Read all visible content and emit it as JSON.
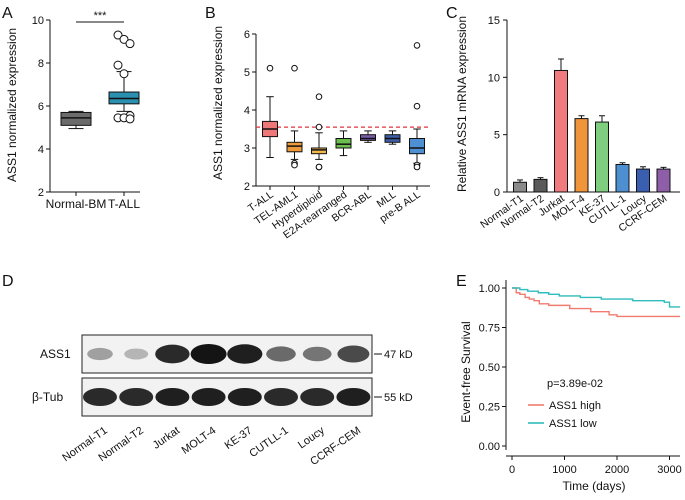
{
  "figure": {
    "panels": {
      "A": "A",
      "B": "B",
      "C": "C",
      "D": "D",
      "E": "E"
    }
  },
  "colors": {
    "normal_bm": "#6b6b6b",
    "tall": "#2b8fb0",
    "b_tall": "#ee7777",
    "b_tel": "#ee9a3a",
    "b_hyper": "#f2b84c",
    "b_e2a": "#6bbd4e",
    "b_bcr": "#7b5ea8",
    "b_mll": "#3e5fa8",
    "b_preb": "#4d8fd1",
    "c_gray": "#8a8a8a",
    "c_dark": "#5a5a5a",
    "c_jurkat": "#f07b7f",
    "c_molt": "#f0953a",
    "c_ke": "#7fcd7f",
    "c_cutll": "#4d8fd1",
    "c_loucy": "#3a5fb0",
    "c_ccrf": "#8e5fa8",
    "ass1_high": "#f07b6f",
    "ass1_low": "#2fbcbc",
    "refline": "#e0353b"
  },
  "chart_data": [
    {
      "panel": "A",
      "type": "box",
      "ylabel": "ASS1 normalized expression",
      "ylim": [
        2,
        10
      ],
      "yticks": [
        "2",
        "4",
        "6",
        "8",
        "10"
      ],
      "categories": [
        "Normal-BM",
        "T-ALL"
      ],
      "significance": "***",
      "boxes": [
        {
          "name": "Normal-BM",
          "min": 4.95,
          "q1": 5.1,
          "median": 5.45,
          "q3": 5.7,
          "max": 5.75,
          "outliers": []
        },
        {
          "name": "T-ALL",
          "min": 5.75,
          "q1": 6.1,
          "median": 6.35,
          "q3": 6.65,
          "max": 7.6,
          "outliers": [
            9.3,
            9.1,
            8.9,
            7.9,
            7.5,
            5.55,
            5.45,
            5.45,
            5.4
          ]
        }
      ]
    },
    {
      "panel": "B",
      "type": "box",
      "ylabel": "ASS1 normalized expression",
      "ylim": [
        2,
        6
      ],
      "yticks": [
        "2",
        "3",
        "4",
        "5",
        "6"
      ],
      "reference_line": 3.55,
      "categories": [
        "T-ALL",
        "TEL-AML1",
        "Hyperdiploid",
        "E2A-rearranged",
        "BCR-ABL",
        "MLL",
        "pre-B ALL"
      ],
      "boxes": [
        {
          "name": "T-ALL",
          "min": 2.75,
          "q1": 3.3,
          "median": 3.5,
          "q3": 3.7,
          "max": 4.35,
          "outliers": [
            5.1
          ]
        },
        {
          "name": "TEL-AML1",
          "min": 2.7,
          "q1": 2.9,
          "median": 3.05,
          "q3": 3.15,
          "max": 3.45,
          "outliers": [
            5.1,
            2.6,
            2.55
          ]
        },
        {
          "name": "Hyperdiploid",
          "min": 2.7,
          "q1": 2.85,
          "median": 2.95,
          "q3": 3.0,
          "max": 3.4,
          "outliers": [
            4.35,
            3.55,
            2.5,
            2.5
          ]
        },
        {
          "name": "E2A-rearranged",
          "min": 2.8,
          "q1": 3.0,
          "median": 3.1,
          "q3": 3.25,
          "max": 3.45,
          "outliers": []
        },
        {
          "name": "BCR-ABL",
          "min": 3.15,
          "q1": 3.2,
          "median": 3.25,
          "q3": 3.35,
          "max": 3.45,
          "outliers": []
        },
        {
          "name": "MLL",
          "min": 3.1,
          "q1": 3.15,
          "median": 3.25,
          "q3": 3.35,
          "max": 3.45,
          "outliers": []
        },
        {
          "name": "pre-B ALL",
          "min": 2.6,
          "q1": 2.85,
          "median": 3.0,
          "q3": 3.25,
          "max": 3.5,
          "outliers": [
            5.7,
            4.1,
            2.55,
            2.5
          ]
        }
      ]
    },
    {
      "panel": "C",
      "type": "bar",
      "ylabel": "Relative ASS1 mRNA expression",
      "ylim": [
        0,
        15
      ],
      "yticks": [
        "0",
        "5",
        "10",
        "15"
      ],
      "categories": [
        "Normal-T1",
        "Normal-T2",
        "Jurkat",
        "MOLT-4",
        "KE-37",
        "CUTLL-1",
        "Loucy",
        "CCRF-CEM"
      ],
      "values": [
        0.85,
        1.1,
        10.6,
        6.4,
        6.1,
        2.4,
        2.0,
        2.0
      ],
      "errors": [
        0.2,
        0.15,
        1.0,
        0.25,
        0.55,
        0.15,
        0.2,
        0.15
      ]
    },
    {
      "panel": "E",
      "type": "line",
      "ylabel": "Event-free Survival",
      "xlabel": "Time (days)",
      "xlim": [
        0,
        3200
      ],
      "ylim": [
        0,
        1
      ],
      "xticks": [
        "0",
        "1000",
        "2000",
        "3000"
      ],
      "yticks": [
        "0.00",
        "0.25",
        "0.50",
        "0.75",
        "1.00"
      ],
      "pvalue": "p=3.89e-02",
      "series": [
        {
          "name": "ASS1 high",
          "x": [
            0,
            80,
            150,
            250,
            330,
            420,
            520,
            700,
            900,
            1100,
            1300,
            1500,
            1700,
            1850,
            2000,
            2200,
            2400,
            2600,
            2800,
            3000,
            3200
          ],
          "y": [
            1.0,
            0.97,
            0.96,
            0.94,
            0.93,
            0.92,
            0.9,
            0.89,
            0.89,
            0.87,
            0.87,
            0.85,
            0.85,
            0.83,
            0.82,
            0.82,
            0.82,
            0.82,
            0.82,
            0.82,
            0.82
          ]
        },
        {
          "name": "ASS1 low",
          "x": [
            0,
            150,
            300,
            500,
            700,
            900,
            1100,
            1300,
            1500,
            1700,
            1900,
            2100,
            2300,
            2500,
            2700,
            2900,
            3000,
            3200
          ],
          "y": [
            1.0,
            0.99,
            0.98,
            0.97,
            0.96,
            0.95,
            0.95,
            0.94,
            0.94,
            0.93,
            0.93,
            0.93,
            0.92,
            0.92,
            0.92,
            0.91,
            0.88,
            0.88
          ]
        }
      ]
    }
  ],
  "western": {
    "rows": [
      {
        "label": "ASS1",
        "size": "47 kD"
      },
      {
        "label": "β-Tub",
        "size": "55 kD"
      }
    ],
    "lanes": [
      "Normal-T1",
      "Normal-T2",
      "Jurkat",
      "MOLT-4",
      "KE-37",
      "CUTLL-1",
      "Loucy",
      "CCRF-CEM"
    ],
    "ass1_intensity": [
      0.35,
      0.25,
      0.9,
      1.0,
      0.95,
      0.6,
      0.55,
      0.75
    ],
    "tub_intensity": [
      0.9,
      0.9,
      0.95,
      0.95,
      0.95,
      0.9,
      0.9,
      0.95
    ]
  }
}
